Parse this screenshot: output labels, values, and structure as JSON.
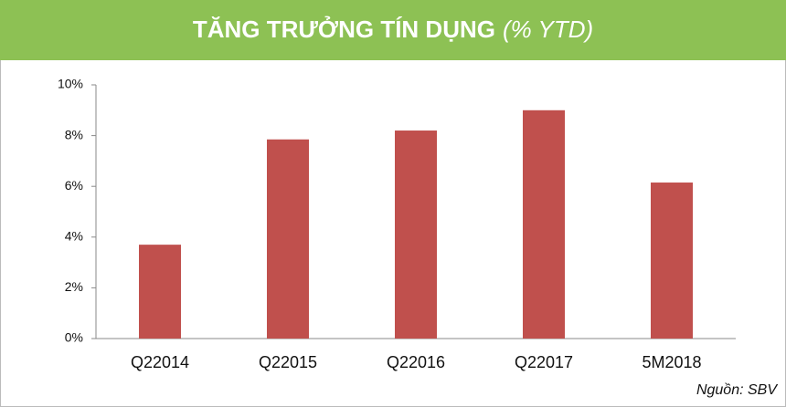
{
  "chart_data": {
    "type": "bar",
    "title": "TĂNG TRƯỞNG TÍN DỤNG",
    "title_unit": "(% YTD)",
    "categories": [
      "Q22014",
      "Q22015",
      "Q22016",
      "Q22017",
      "5M2018"
    ],
    "values": [
      3.7,
      7.85,
      8.2,
      9.0,
      6.15
    ],
    "color": "#c0504d",
    "ylim": [
      0,
      10
    ],
    "yticks": [
      {
        "value": 0,
        "label": "0%"
      },
      {
        "value": 2,
        "label": "2%"
      },
      {
        "value": 4,
        "label": "4%"
      },
      {
        "value": 6,
        "label": "6%"
      },
      {
        "value": 8,
        "label": "8%"
      },
      {
        "value": 10,
        "label": "10%"
      }
    ],
    "source": "Nguồn: SBV"
  }
}
